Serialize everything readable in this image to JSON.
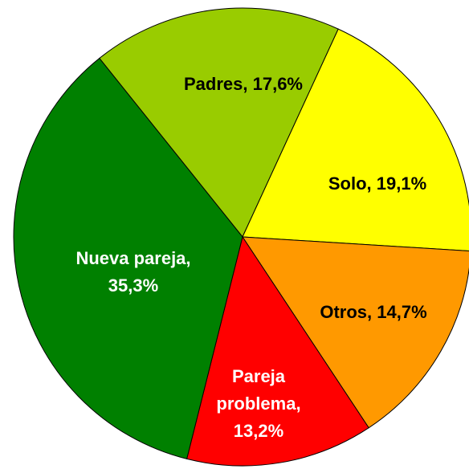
{
  "chart_data": {
    "type": "pie",
    "values": [
      17.6,
      19.1,
      14.7,
      13.2,
      35.3
    ],
    "value_labels": [
      [
        "Padres, 17,6%"
      ],
      [
        "Solo, 19,1%"
      ],
      [
        "Otros, 14,7%"
      ],
      [
        "Pareja",
        "problema,",
        "13,2%"
      ],
      [
        "Nueva pareja,",
        "35,3%"
      ]
    ],
    "colors": [
      "#99cc00",
      "#ffff00",
      "#ff9900",
      "#ff0000",
      "#008000"
    ],
    "label_colors": [
      "#000000",
      "#000000",
      "#000000",
      "#ffffff",
      "#ffffff"
    ]
  }
}
